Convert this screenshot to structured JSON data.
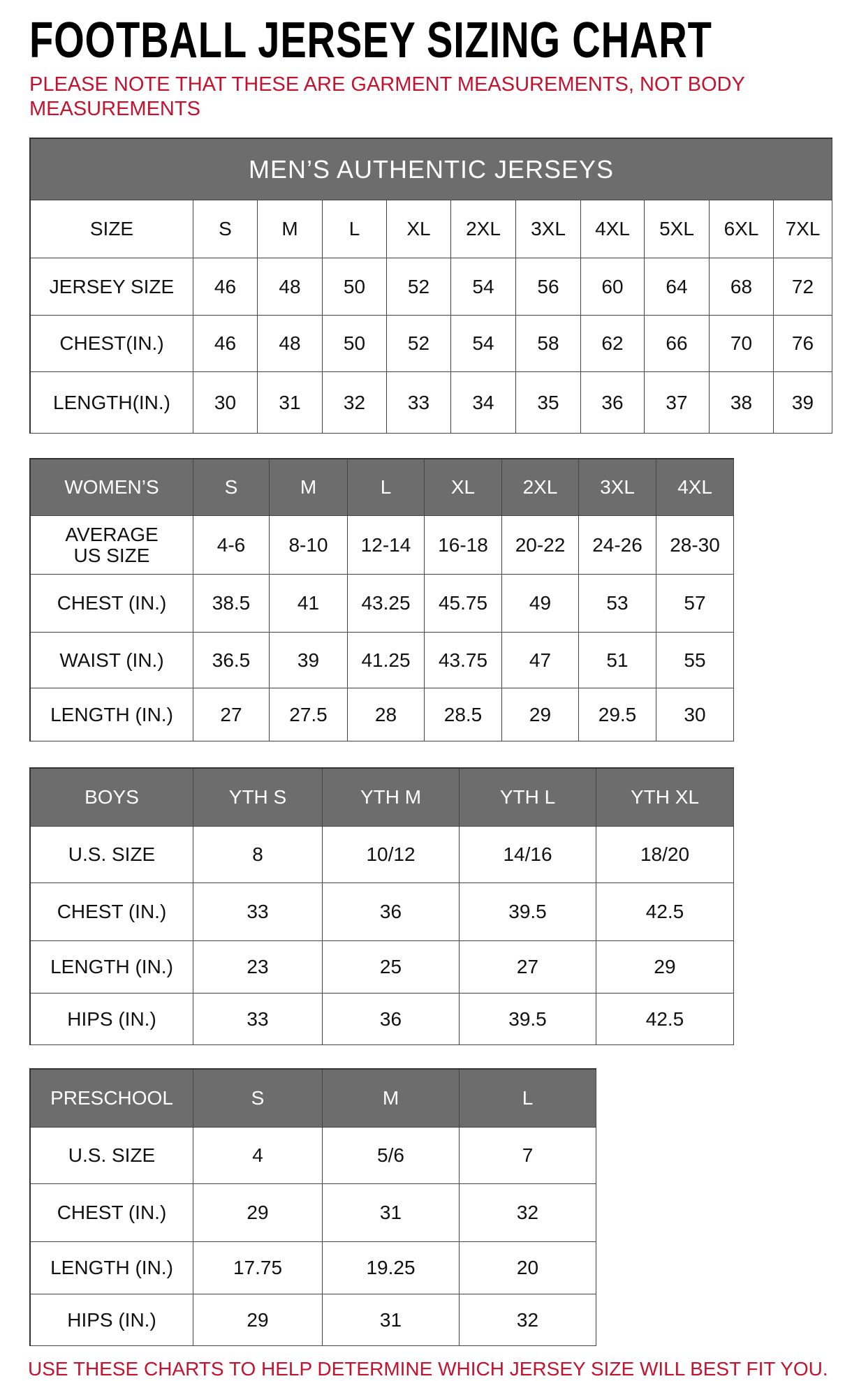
{
  "title": "FOOTBALL JERSEY SIZING CHART",
  "note": "PLEASE NOTE THAT THESE ARE GARMENT MEASUREMENTS, NOT BODY MEASUREMENTS",
  "footer": "USE THESE CHARTS TO HELP DETERMINE WHICH JERSEY SIZE WILL BEST FIT YOU.",
  "colors": {
    "header_bg": "#6d6d6d",
    "accent_red": "#c4122f"
  },
  "tables": [
    {
      "id": "mens",
      "band": "MEN’S AUTHENTIC JERSEYS",
      "header": [
        "SIZE",
        "S",
        "M",
        "L",
        "XL",
        "2XL",
        "3XL",
        "4XL",
        "5XL",
        "6XL",
        "7XL"
      ],
      "header_style": "plain",
      "rows": [
        [
          "JERSEY SIZE",
          "46",
          "48",
          "50",
          "52",
          "54",
          "56",
          "60",
          "64",
          "68",
          "72"
        ],
        [
          "CHEST(IN.)",
          "46",
          "48",
          "50",
          "52",
          "54",
          "58",
          "62",
          "66",
          "70",
          "76"
        ],
        [
          "LENGTH(IN.)",
          "30",
          "31",
          "32",
          "33",
          "34",
          "35",
          "36",
          "37",
          "38",
          "39"
        ]
      ]
    },
    {
      "id": "womens",
      "header": [
        "WOMEN’S",
        "S",
        "M",
        "L",
        "XL",
        "2XL",
        "3XL",
        "4XL"
      ],
      "header_style": "dark",
      "rows": [
        [
          "AVERAGE\nUS SIZE",
          "4-6",
          "8-10",
          "12-14",
          "16-18",
          "20-22",
          "24-26",
          "28-30"
        ],
        [
          "CHEST (IN.)",
          "38.5",
          "41",
          "43.25",
          "45.75",
          "49",
          "53",
          "57"
        ],
        [
          "WAIST (IN.)",
          "36.5",
          "39",
          "41.25",
          "43.75",
          "47",
          "51",
          "55"
        ],
        [
          "LENGTH (IN.)",
          "27",
          "27.5",
          "28",
          "28.5",
          "29",
          "29.5",
          "30"
        ]
      ]
    },
    {
      "id": "boys",
      "header": [
        "BOYS",
        "YTH S",
        "YTH M",
        "YTH L",
        "YTH XL"
      ],
      "header_style": "dark",
      "rows": [
        [
          "U.S. SIZE",
          "8",
          "10/12",
          "14/16",
          "18/20"
        ],
        [
          "CHEST (IN.)",
          "33",
          "36",
          "39.5",
          "42.5"
        ],
        [
          "LENGTH (IN.)",
          "23",
          "25",
          "27",
          "29"
        ],
        [
          "HIPS (IN.)",
          "33",
          "36",
          "39.5",
          "42.5"
        ]
      ]
    },
    {
      "id": "preschool",
      "header": [
        "PRESCHOOL",
        "S",
        "M",
        "L"
      ],
      "header_style": "dark",
      "rows": [
        [
          "U.S. SIZE",
          "4",
          "5/6",
          "7"
        ],
        [
          "CHEST (IN.)",
          "29",
          "31",
          "32"
        ],
        [
          "LENGTH (IN.)",
          "17.75",
          "19.25",
          "20"
        ],
        [
          "HIPS (IN.)",
          "29",
          "31",
          "32"
        ]
      ]
    }
  ]
}
